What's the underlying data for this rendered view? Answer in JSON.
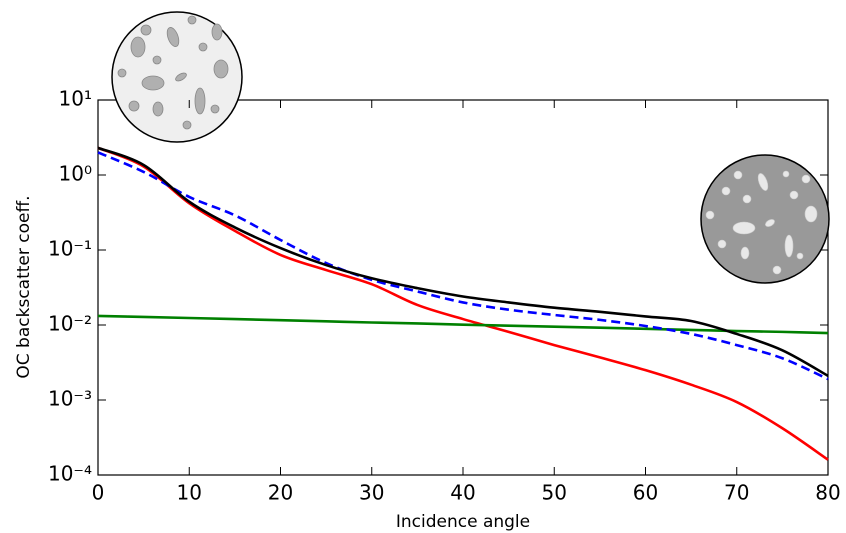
{
  "chart_data": {
    "type": "line",
    "xlabel": "Incidence angle",
    "ylabel": "OC backscatter coeff.",
    "x": [
      0,
      5,
      10,
      15,
      20,
      25,
      30,
      35,
      40,
      45,
      50,
      55,
      60,
      65,
      70,
      75,
      80
    ],
    "series": [
      {
        "color": "#ff0000",
        "linestyle": "solid",
        "values": [
          2.3,
          1.3,
          0.42,
          0.18,
          0.086,
          0.054,
          0.035,
          0.0185,
          0.012,
          0.0081,
          0.0054,
          0.0037,
          0.0025,
          0.0016,
          0.00094,
          0.00042,
          0.00016
        ]
      },
      {
        "color": "#008000",
        "linestyle": "solid",
        "values": [
          0.0132,
          0.0128,
          0.0124,
          0.012,
          0.0116,
          0.0112,
          0.0108,
          0.0105,
          0.0101,
          0.0098,
          0.0095,
          0.0092,
          0.0089,
          0.0086,
          0.0083,
          0.0081,
          0.0078
        ]
      },
      {
        "color": "#0000ff",
        "linestyle": "dashed",
        "values": [
          2.0,
          1.1,
          0.51,
          0.29,
          0.136,
          0.067,
          0.04,
          0.028,
          0.02,
          0.016,
          0.0136,
          0.0117,
          0.0097,
          0.0076,
          0.0054,
          0.0036,
          0.0019
        ]
      },
      {
        "color": "#000000",
        "linestyle": "solid",
        "values": [
          2.3,
          1.36,
          0.44,
          0.2,
          0.106,
          0.063,
          0.042,
          0.031,
          0.024,
          0.02,
          0.017,
          0.015,
          0.013,
          0.0113,
          0.0076,
          0.0046,
          0.0021
        ]
      }
    ],
    "xlim": [
      0,
      80
    ],
    "xticks": [
      0,
      10,
      20,
      30,
      40,
      50,
      60,
      70,
      80
    ],
    "ylim": [
      0.0001,
      10
    ],
    "yscale": "log",
    "yticks": [
      {
        "value": 10,
        "label": "10¹"
      },
      {
        "value": 1,
        "label": "10⁰"
      },
      {
        "value": 0.1,
        "label": "10⁻¹"
      },
      {
        "value": 0.01,
        "label": "10⁻²"
      },
      {
        "value": 0.001,
        "label": "10⁻³"
      },
      {
        "value": 0.0001,
        "label": "10⁻⁴"
      }
    ]
  }
}
